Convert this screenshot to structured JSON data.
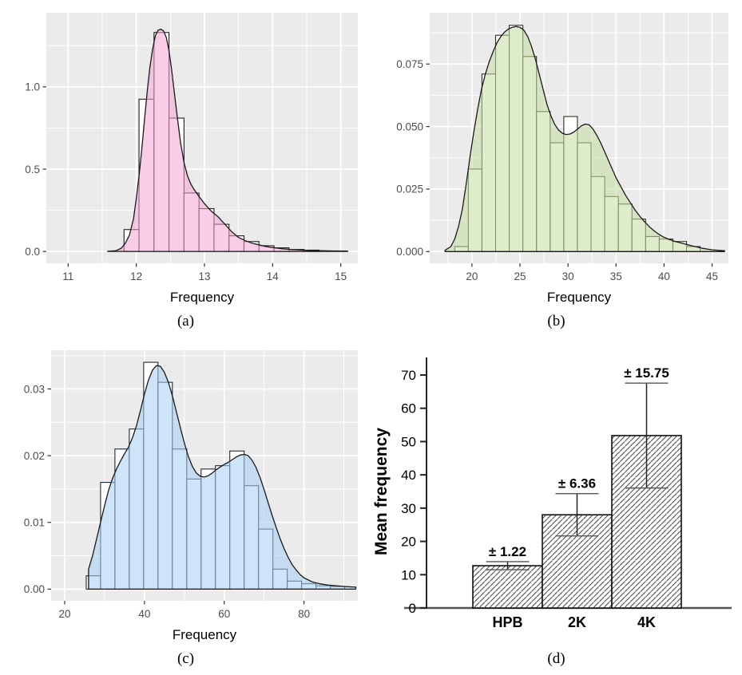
{
  "chart_data": [
    {
      "id": "a",
      "type": "histogram_density",
      "caption": "(a)",
      "xlabel": "Frequency",
      "xlim": [
        10.68,
        15.25
      ],
      "ylim": [
        -0.072,
        1.45
      ],
      "xticks": [
        11,
        12,
        13,
        14,
        15
      ],
      "xtick_labels": [
        "11",
        "12",
        "13",
        "14",
        "15"
      ],
      "yticks": [
        0,
        0.5,
        1.0
      ],
      "ytick_labels": [
        "0.0",
        "0.5",
        "1.0"
      ],
      "grid": true,
      "panel_bg": "#ebebeb",
      "grid_color": "#ffffff",
      "bar_fill": "#ffffff",
      "bar_stroke": "#1f1f1f",
      "density_fill": "rgba(243,164,208,0.55)",
      "density_stroke": "#1a1a1a",
      "bins": {
        "start": 11.82,
        "width": 0.22,
        "heights": [
          0.133,
          0.925,
          1.33,
          0.81,
          0.355,
          0.26,
          0.165,
          0.095,
          0.06,
          0.035,
          0.022,
          0.012,
          0.008
        ]
      },
      "density": {
        "x": [
          11.58,
          11.7,
          11.78,
          11.84,
          11.9,
          11.96,
          12.0,
          12.04,
          12.08,
          12.12,
          12.16,
          12.2,
          12.24,
          12.28,
          12.32,
          12.36,
          12.4,
          12.44,
          12.48,
          12.52,
          12.56,
          12.6,
          12.65,
          12.7,
          12.75,
          12.8,
          12.85,
          12.9,
          13.0,
          13.1,
          13.2,
          13.3,
          13.4,
          13.5,
          13.6,
          13.7,
          13.8,
          13.9,
          14.0,
          14.15,
          14.3,
          14.5,
          14.7,
          14.9,
          15.1
        ],
        "y": [
          0.001,
          0.004,
          0.02,
          0.05,
          0.1,
          0.2,
          0.32,
          0.46,
          0.62,
          0.8,
          0.97,
          1.12,
          1.23,
          1.31,
          1.345,
          1.35,
          1.34,
          1.3,
          1.22,
          1.1,
          0.96,
          0.82,
          0.66,
          0.54,
          0.46,
          0.41,
          0.375,
          0.345,
          0.29,
          0.245,
          0.21,
          0.165,
          0.12,
          0.085,
          0.065,
          0.05,
          0.04,
          0.03,
          0.024,
          0.016,
          0.011,
          0.007,
          0.005,
          0.003,
          0.002
        ]
      }
    },
    {
      "id": "b",
      "type": "histogram_density",
      "caption": "(b)",
      "xlabel": "Frequency",
      "xlim": [
        15.6,
        46.7
      ],
      "ylim": [
        -0.0047,
        0.0955
      ],
      "xticks": [
        20,
        25,
        30,
        35,
        40,
        45
      ],
      "xtick_labels": [
        "20",
        "25",
        "30",
        "35",
        "40",
        "45"
      ],
      "yticks": [
        0,
        0.025,
        0.05,
        0.075
      ],
      "ytick_labels": [
        "0.000",
        "0.025",
        "0.050",
        "0.075"
      ],
      "grid": true,
      "panel_bg": "#ebebeb",
      "grid_color": "#ffffff",
      "bar_fill": "#ffffff",
      "bar_stroke": "#32321e",
      "density_fill": "rgba(196,221,163,0.55)",
      "density_stroke": "#1a1a1a",
      "bins": {
        "start": 18.2,
        "width": 1.42,
        "heights": [
          0.002,
          0.033,
          0.071,
          0.0865,
          0.0905,
          0.078,
          0.056,
          0.0435,
          0.054,
          0.0435,
          0.03,
          0.022,
          0.019,
          0.013,
          0.006,
          0.005,
          0.004,
          0.002
        ]
      },
      "density": {
        "x": [
          17.2,
          17.8,
          18.2,
          18.6,
          19.0,
          19.4,
          19.8,
          20.2,
          20.6,
          21.0,
          21.4,
          21.8,
          22.2,
          22.6,
          23.0,
          23.4,
          23.8,
          24.2,
          24.6,
          25.0,
          25.4,
          25.8,
          26.2,
          26.6,
          27.0,
          27.4,
          27.8,
          28.2,
          28.6,
          29.0,
          29.4,
          29.8,
          30.2,
          30.6,
          31.0,
          31.4,
          31.8,
          32.2,
          32.6,
          33.0,
          33.4,
          33.8,
          34.2,
          34.6,
          35.0,
          35.5,
          36.0,
          36.5,
          37.0,
          37.5,
          38.0,
          38.5,
          39.0,
          39.5,
          40.0,
          40.5,
          41.0,
          41.5,
          42.0,
          43.0,
          44.0,
          45.0,
          46.3
        ],
        "y": [
          0.0005,
          0.002,
          0.005,
          0.01,
          0.017,
          0.027,
          0.038,
          0.048,
          0.057,
          0.065,
          0.071,
          0.076,
          0.08,
          0.0835,
          0.086,
          0.0878,
          0.089,
          0.0897,
          0.09,
          0.0897,
          0.0885,
          0.086,
          0.082,
          0.077,
          0.071,
          0.065,
          0.059,
          0.0545,
          0.051,
          0.0487,
          0.0473,
          0.0468,
          0.047,
          0.0478,
          0.049,
          0.0503,
          0.051,
          0.0507,
          0.049,
          0.0465,
          0.0435,
          0.04,
          0.0365,
          0.033,
          0.0295,
          0.026,
          0.0225,
          0.0195,
          0.0165,
          0.014,
          0.0118,
          0.0098,
          0.0082,
          0.0068,
          0.0057,
          0.0049,
          0.0042,
          0.0037,
          0.0032,
          0.0022,
          0.0013,
          0.0007,
          0.0003
        ]
      }
    },
    {
      "id": "c",
      "type": "histogram_density",
      "caption": "(c)",
      "xlabel": "Frequency",
      "xlim": [
        16.6,
        93.5
      ],
      "ylim": [
        -0.00175,
        0.0358
      ],
      "xticks": [
        20,
        40,
        60,
        80
      ],
      "xtick_labels": [
        "20",
        "40",
        "60",
        "80"
      ],
      "yticks": [
        0,
        0.01,
        0.02,
        0.03
      ],
      "ytick_labels": [
        "0.00",
        "0.01",
        "0.02",
        "0.03"
      ],
      "grid": true,
      "panel_bg": "#ebebeb",
      "grid_color": "#ffffff",
      "bar_fill": "#ffffff",
      "bar_stroke": "#1c2a3a",
      "density_fill": "rgba(166,206,242,0.55)",
      "density_stroke": "#1a1a1a",
      "bins": {
        "start": 25.4,
        "width": 3.6,
        "heights": [
          0.002,
          0.016,
          0.021,
          0.024,
          0.034,
          0.031,
          0.021,
          0.0165,
          0.018,
          0.0185,
          0.0207,
          0.0155,
          0.009,
          0.003,
          0.0012,
          0.0008,
          0.0005,
          0.0004
        ]
      },
      "density": {
        "x": [
          26,
          27,
          28,
          29,
          30,
          31,
          32,
          33,
          34,
          35,
          36,
          37,
          38,
          39,
          40,
          41,
          42,
          43,
          44,
          45,
          46,
          47,
          48,
          49,
          50,
          51,
          52,
          53,
          54,
          55,
          56,
          57,
          58,
          59,
          60,
          61,
          62,
          63,
          64,
          65,
          66,
          67,
          68,
          69,
          70,
          71,
          72,
          73,
          74,
          75,
          76,
          77,
          78,
          79,
          80,
          82,
          84,
          86,
          88,
          90,
          93
        ],
        "y": [
          0.003,
          0.005,
          0.0075,
          0.01,
          0.0125,
          0.0148,
          0.0166,
          0.018,
          0.0192,
          0.0203,
          0.0213,
          0.0227,
          0.0245,
          0.0268,
          0.0292,
          0.0313,
          0.0328,
          0.0335,
          0.0334,
          0.0325,
          0.031,
          0.029,
          0.0266,
          0.0242,
          0.0219,
          0.0199,
          0.0184,
          0.0174,
          0.0169,
          0.0168,
          0.017,
          0.0174,
          0.0179,
          0.0183,
          0.0187,
          0.019,
          0.0194,
          0.0198,
          0.0201,
          0.0202,
          0.02,
          0.0193,
          0.0182,
          0.0167,
          0.0149,
          0.013,
          0.0111,
          0.0093,
          0.0076,
          0.0061,
          0.0048,
          0.0037,
          0.0029,
          0.0022,
          0.0017,
          0.0011,
          0.0008,
          0.0006,
          0.0005,
          0.0004,
          0.0003
        ]
      }
    },
    {
      "id": "d",
      "type": "bar",
      "caption": "(d)",
      "ylabel": "Mean frequency",
      "categories": [
        "HPB",
        "2K",
        "4K"
      ],
      "values": [
        12.7,
        28,
        51.8
      ],
      "errors": [
        1.22,
        6.36,
        15.75
      ],
      "error_labels": [
        "± 1.22",
        "± 6.36",
        "± 15.75"
      ],
      "yticks": [
        0,
        10,
        20,
        30,
        40,
        50,
        60,
        70
      ],
      "ytick_labels": [
        "0",
        "10",
        "20",
        "30",
        "40",
        "50",
        "60",
        "70"
      ],
      "ylim": [
        0,
        75
      ],
      "grid": false,
      "bar_fill": "#ffffff",
      "bar_stroke": "#111111",
      "hatch_color": "#444444",
      "axis_color": "#555555",
      "spine_color": "#222222",
      "text_color": "#000000"
    }
  ]
}
